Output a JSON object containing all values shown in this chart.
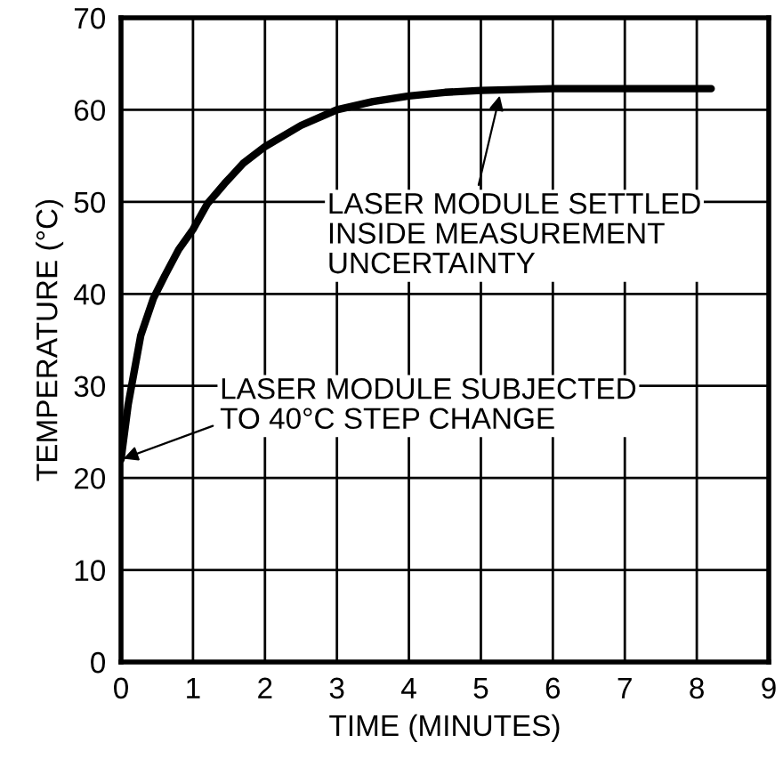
{
  "chart_data": {
    "type": "line",
    "xlabel": "TIME (MINUTES)",
    "ylabel": "TEMPERATURE (°C)",
    "series": [
      {
        "color": "#000000",
        "x": [
          0,
          0.1,
          0.275,
          0.45,
          0.61,
          0.8,
          1,
          1.2,
          1.44,
          1.7,
          2,
          2.5,
          3,
          3.5,
          4,
          4.5,
          5,
          6,
          7,
          8.2
        ],
        "values": [
          22,
          28,
          35.5,
          39.5,
          42,
          44.8,
          47,
          49.8,
          52,
          54.2,
          56,
          58.3,
          60,
          60.9,
          61.5,
          61.9,
          62.1,
          62.3,
          62.3,
          62.3
        ]
      }
    ],
    "xlim": [
      0,
      9
    ],
    "xticks": [
      0,
      1,
      2,
      3,
      4,
      5,
      6,
      7,
      8,
      9
    ],
    "ylim": [
      0,
      70
    ],
    "yticks": [
      0,
      10,
      20,
      30,
      40,
      50,
      60,
      70
    ],
    "grid": true,
    "legend": false,
    "marker": "none",
    "line_style": "solid",
    "annotations": [
      {
        "text": "LASER MODULE SUBJECTED\nTO 40°C STEP CHANGE",
        "x": 0,
        "y": 22
      },
      {
        "text": "LASER MODULE SETTLED\nINSIDE MEASUREMENT\nUNCERTAINTY",
        "x": 5.27,
        "y": 61.8
      }
    ]
  }
}
